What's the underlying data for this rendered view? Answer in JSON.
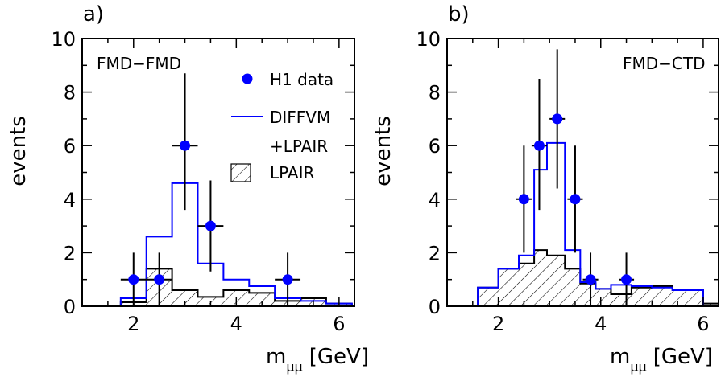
{
  "chart_data": [
    {
      "type": "bar",
      "panel_tag": "a)",
      "label": "FMD−FMD",
      "xlabel": "m",
      "xlabel_sub": "μμ",
      "xlabel_unit": "[GeV]",
      "ylabel": "events",
      "xlim": [
        1,
        6.3
      ],
      "ylim": [
        0,
        10
      ],
      "xticks": [
        "2",
        "4",
        "6"
      ],
      "yticks": [
        "0",
        "2",
        "4",
        "6",
        "8",
        "10"
      ],
      "legend": {
        "position": "top-right",
        "data": "H1 data",
        "line_1": "DIFFVM",
        "line_2": "+LPAIR",
        "hatch": "LPAIR"
      },
      "data_points": [
        {
          "x": 2.0,
          "y": 1,
          "xerr": 0.25,
          "ylo": 0,
          "yhi": 2.0
        },
        {
          "x": 2.5,
          "y": 1,
          "xerr": 0.25,
          "ylo": 0,
          "yhi": 2.0
        },
        {
          "x": 3.0,
          "y": 6,
          "xerr": 0.25,
          "ylo": 3.6,
          "yhi": 8.7
        },
        {
          "x": 3.5,
          "y": 3,
          "xerr": 0.25,
          "ylo": 1.3,
          "yhi": 4.7
        },
        {
          "x": 5.0,
          "y": 1,
          "xerr": 0.25,
          "ylo": 0,
          "yhi": 2.0
        }
      ],
      "diffvm_lpair_edges": [
        1.75,
        2.25,
        2.75,
        3.25,
        3.75,
        4.25,
        4.75,
        5.25,
        5.75,
        6.25
      ],
      "diffvm_lpair_values": [
        0.3,
        2.6,
        4.6,
        1.6,
        1.0,
        0.75,
        0.3,
        0.2,
        0.1
      ],
      "lpair_edges": [
        1.75,
        2.25,
        2.75,
        3.25,
        3.75,
        4.25,
        4.75,
        5.25,
        5.75,
        6.25
      ],
      "lpair_values": [
        0.15,
        1.4,
        0.6,
        0.35,
        0.6,
        0.5,
        0.2,
        0.3,
        0.1
      ]
    },
    {
      "type": "bar",
      "panel_tag": "b)",
      "label": "FMD−CTD",
      "xlabel": "m",
      "xlabel_sub": "μμ",
      "xlabel_unit": "[GeV]",
      "ylabel": "events",
      "xlim": [
        1,
        6.3
      ],
      "ylim": [
        0,
        10
      ],
      "xticks": [
        "2",
        "4",
        "6"
      ],
      "yticks": [
        "0",
        "2",
        "4",
        "6",
        "8",
        "10"
      ],
      "data_points": [
        {
          "x": 2.5,
          "y": 4,
          "xerr": 0.15,
          "ylo": 2.0,
          "yhi": 6.0
        },
        {
          "x": 2.8,
          "y": 6,
          "xerr": 0.15,
          "ylo": 3.6,
          "yhi": 8.5
        },
        {
          "x": 3.15,
          "y": 7,
          "xerr": 0.15,
          "ylo": 4.4,
          "yhi": 9.6
        },
        {
          "x": 3.5,
          "y": 4,
          "xerr": 0.15,
          "ylo": 2.0,
          "yhi": 6.0
        },
        {
          "x": 3.8,
          "y": 1,
          "xerr": 0.15,
          "ylo": 0,
          "yhi": 2.0
        },
        {
          "x": 4.5,
          "y": 1,
          "xerr": 0.15,
          "ylo": 0,
          "yhi": 2.0
        }
      ],
      "diffvm_lpair_edges": [
        1.6,
        2.0,
        2.4,
        2.7,
        2.95,
        3.3,
        3.6,
        3.9,
        4.2,
        4.6,
        5.0,
        5.4,
        6.0
      ],
      "diffvm_lpair_values": [
        0.7,
        1.4,
        1.9,
        5.1,
        6.1,
        2.1,
        0.9,
        0.65,
        0.8,
        0.75,
        0.7,
        0.6
      ],
      "lpair_edges": [
        1.6,
        2.0,
        2.4,
        2.7,
        2.95,
        3.3,
        3.6,
        3.9,
        4.2,
        4.6,
        5.0,
        5.4,
        6.0,
        6.3
      ],
      "lpair_values": [
        0.7,
        1.4,
        1.6,
        2.1,
        1.9,
        1.4,
        0.85,
        0.65,
        0.45,
        0.7,
        0.75,
        0.6,
        0.1
      ]
    }
  ],
  "colors": {
    "data": "#0000ff",
    "line": "#0000ff",
    "frame": "#000000"
  }
}
